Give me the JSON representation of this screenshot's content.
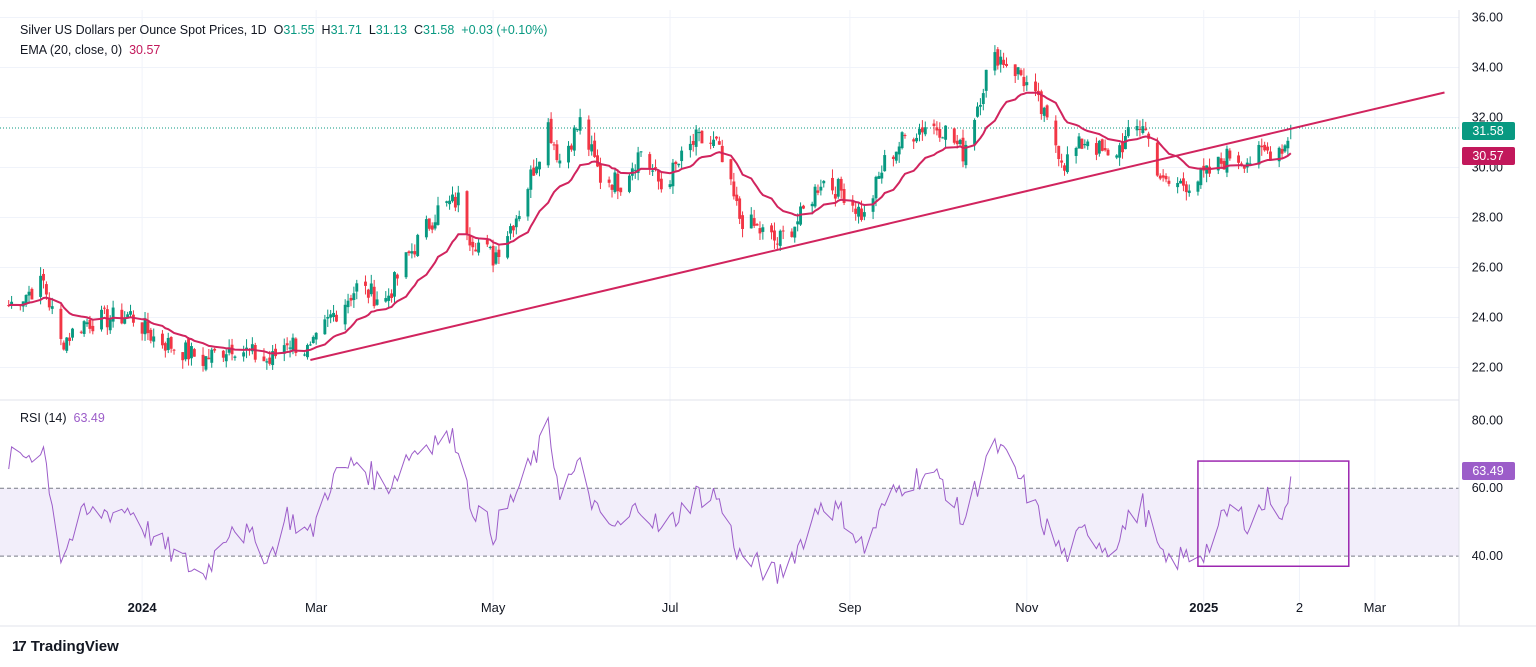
{
  "header": {
    "title": "Silver US Dollars per Ounce Spot Prices, 1D",
    "open_label": "O",
    "open": "31.55",
    "high_label": "H",
    "high": "31.71",
    "low_label": "L",
    "low": "31.13",
    "close_label": "C",
    "close": "31.58",
    "change": "+0.03 (+0.10%)"
  },
  "ema_legend": {
    "label": "EMA (20, close, 0)",
    "value": "30.57"
  },
  "rsi_legend": {
    "label": "RSI (14)",
    "value": "63.49"
  },
  "price_tags": {
    "last": "31.58",
    "ema": "30.57",
    "rsi": "63.49"
  },
  "branding": {
    "name": "TradingView"
  },
  "colors": {
    "up": "#089981",
    "down": "#f23645",
    "ema": "#d1245e",
    "trendline": "#d1245e",
    "rsi": "#9c5dc9",
    "rsi_box": "#9c27b0",
    "rsi_band": "#f2eefa"
  },
  "chart_data": [
    {
      "type": "candlestick",
      "title": "Silver US Dollars per Ounce Spot Prices, 1D",
      "x_tick_labels": [
        "2024",
        "Mar",
        "May",
        "Jul",
        "Sep",
        "Nov",
        "2025",
        "2",
        "Mar"
      ],
      "y_tick_labels": [
        "22.00",
        "24.00",
        "26.00",
        "28.00",
        "30.00",
        "32.00",
        "34.00",
        "36.00"
      ],
      "ylim": [
        20.7,
        36.3
      ],
      "last": {
        "open": 31.55,
        "high": 31.71,
        "low": 31.13,
        "close": 31.58
      },
      "ema20_last": 30.57,
      "close_anchors_approx": [
        [
          "2023-11-16",
          24.5
        ],
        [
          "2023-11-28",
          25.4
        ],
        [
          "2023-12-04",
          23.0
        ],
        [
          "2023-12-12",
          23.8
        ],
        [
          "2023-12-28",
          24.1
        ],
        [
          "2024-01-05",
          23.2
        ],
        [
          "2024-01-22",
          22.3
        ],
        [
          "2024-02-01",
          22.9
        ],
        [
          "2024-02-14",
          22.2
        ],
        [
          "2024-02-20",
          23.1
        ],
        [
          "2024-02-28",
          22.6
        ],
        [
          "2024-03-06",
          24.0
        ],
        [
          "2024-03-15",
          25.2
        ],
        [
          "2024-03-25",
          24.7
        ],
        [
          "2024-04-02",
          26.5
        ],
        [
          "2024-04-12",
          28.3
        ],
        [
          "2024-04-19",
          28.7
        ],
        [
          "2024-04-23",
          27.3
        ],
        [
          "2024-05-01",
          26.4
        ],
        [
          "2024-05-10",
          28.3
        ],
        [
          "2024-05-20",
          31.7
        ],
        [
          "2024-05-24",
          30.3
        ],
        [
          "2024-05-31",
          31.8
        ],
        [
          "2024-06-07",
          29.6
        ],
        [
          "2024-06-14",
          29.4
        ],
        [
          "2024-06-21",
          30.7
        ],
        [
          "2024-06-28",
          29.2
        ],
        [
          "2024-07-10",
          31.1
        ],
        [
          "2024-07-17",
          30.9
        ],
        [
          "2024-07-25",
          28.0
        ],
        [
          "2024-08-07",
          27.0
        ],
        [
          "2024-08-15",
          28.0
        ],
        [
          "2024-08-22",
          29.5
        ],
        [
          "2024-08-30",
          29.0
        ],
        [
          "2024-09-06",
          28.0
        ],
        [
          "2024-09-13",
          30.2
        ],
        [
          "2024-09-20",
          31.2
        ],
        [
          "2024-09-27",
          31.7
        ],
        [
          "2024-10-03",
          31.6
        ],
        [
          "2024-10-10",
          30.6
        ],
        [
          "2024-10-18",
          33.7
        ],
        [
          "2024-10-22",
          34.5
        ],
        [
          "2024-10-30",
          33.7
        ],
        [
          "2024-11-05",
          32.5
        ],
        [
          "2024-11-14",
          30.2
        ],
        [
          "2024-11-22",
          31.2
        ],
        [
          "2024-11-29",
          30.3
        ],
        [
          "2024-12-06",
          31.2
        ],
        [
          "2024-12-11",
          31.8
        ],
        [
          "2024-12-18",
          29.3
        ],
        [
          "2024-12-27",
          29.4
        ],
        [
          "2025-01-02",
          29.7
        ],
        [
          "2025-01-10",
          30.5
        ],
        [
          "2025-01-17",
          30.3
        ],
        [
          "2025-01-24",
          30.7
        ],
        [
          "2025-01-29",
          30.9
        ],
        [
          "2025-01-31",
          31.58
        ]
      ],
      "trendline": {
        "from": [
          "2024-02-28",
          22.3
        ],
        "to": [
          "2025-03-25",
          33.0
        ]
      }
    },
    {
      "type": "line",
      "title": "RSI (14)",
      "y_tick_labels": [
        "40.00",
        "60.00",
        "80.00"
      ],
      "ylim": [
        30,
        86
      ],
      "band": [
        40,
        60
      ],
      "last": 63.49,
      "values_approx": [
        [
          "2023-11-16",
          68
        ],
        [
          "2023-11-28",
          72
        ],
        [
          "2023-12-04",
          40
        ],
        [
          "2023-12-12",
          52
        ],
        [
          "2023-12-28",
          54
        ],
        [
          "2024-01-05",
          45
        ],
        [
          "2024-01-22",
          34
        ],
        [
          "2024-02-01",
          50
        ],
        [
          "2024-02-14",
          40
        ],
        [
          "2024-02-20",
          52
        ],
        [
          "2024-02-28",
          46
        ],
        [
          "2024-03-06",
          62
        ],
        [
          "2024-03-15",
          68
        ],
        [
          "2024-03-25",
          60
        ],
        [
          "2024-04-02",
          70
        ],
        [
          "2024-04-12",
          75
        ],
        [
          "2024-04-19",
          74
        ],
        [
          "2024-04-23",
          56
        ],
        [
          "2024-05-01",
          47
        ],
        [
          "2024-05-10",
          60
        ],
        [
          "2024-05-20",
          77
        ],
        [
          "2024-05-24",
          60
        ],
        [
          "2024-05-31",
          66
        ],
        [
          "2024-06-07",
          50
        ],
        [
          "2024-06-14",
          48
        ],
        [
          "2024-06-21",
          56
        ],
        [
          "2024-06-28",
          47
        ],
        [
          "2024-07-10",
          58
        ],
        [
          "2024-07-17",
          58
        ],
        [
          "2024-07-25",
          40
        ],
        [
          "2024-08-07",
          34
        ],
        [
          "2024-08-15",
          44
        ],
        [
          "2024-08-22",
          56
        ],
        [
          "2024-08-30",
          52
        ],
        [
          "2024-09-06",
          42
        ],
        [
          "2024-09-13",
          55
        ],
        [
          "2024-09-20",
          62
        ],
        [
          "2024-09-27",
          64
        ],
        [
          "2024-10-03",
          62
        ],
        [
          "2024-10-10",
          50
        ],
        [
          "2024-10-18",
          68
        ],
        [
          "2024-10-22",
          72
        ],
        [
          "2024-10-30",
          62
        ],
        [
          "2024-11-05",
          52
        ],
        [
          "2024-11-14",
          40
        ],
        [
          "2024-11-22",
          48
        ],
        [
          "2024-11-29",
          42
        ],
        [
          "2024-12-06",
          50
        ],
        [
          "2024-12-11",
          55
        ],
        [
          "2024-12-18",
          38
        ],
        [
          "2024-12-27",
          40
        ],
        [
          "2025-01-02",
          42
        ],
        [
          "2025-01-10",
          54
        ],
        [
          "2025-01-17",
          50
        ],
        [
          "2025-01-24",
          58
        ],
        [
          "2025-01-29",
          52
        ],
        [
          "2025-01-31",
          63.49
        ]
      ],
      "highlight_box": {
        "from": [
          "2024-12-30",
          37
        ],
        "to": [
          "2025-02-20",
          68
        ]
      }
    }
  ]
}
